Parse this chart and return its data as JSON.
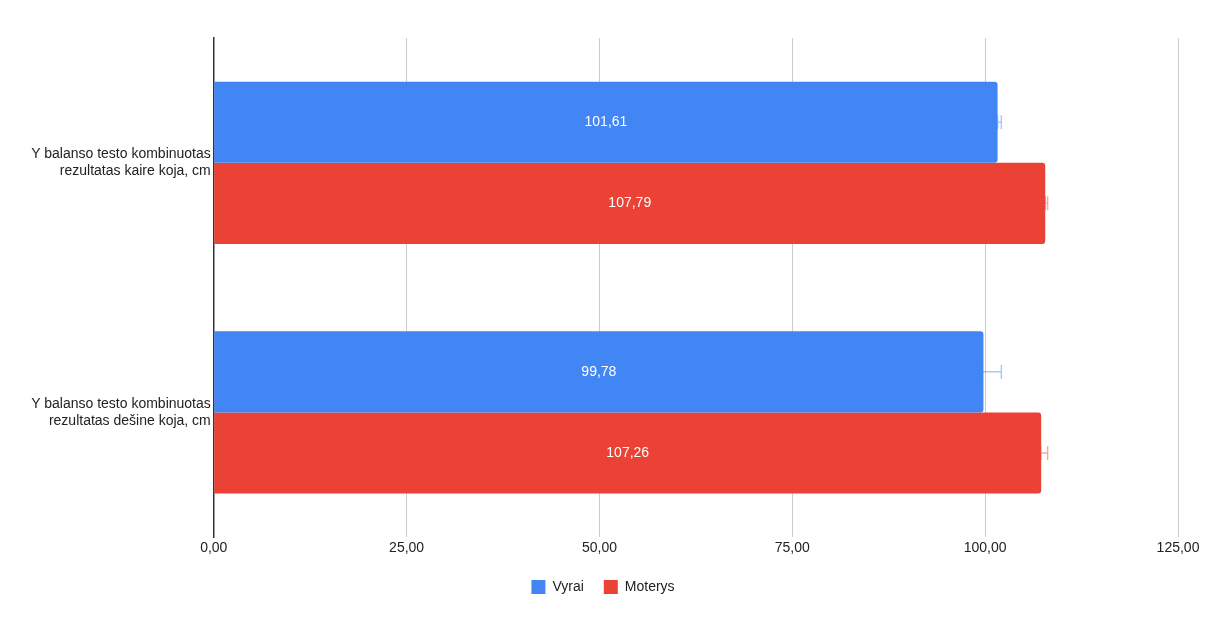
{
  "chart_data": {
    "type": "bar",
    "orientation": "horizontal",
    "categories": [
      "Y balanso testo kombinuotas rezultatas kaire koja, cm",
      "Y balanso testo kombinuotas rezultatas dešine koja, cm"
    ],
    "series": [
      {
        "name": "Vyrai",
        "color": "#4285f4",
        "values": [
          101.61,
          99.78
        ],
        "value_labels": [
          "101,61",
          "99,78"
        ],
        "errors": [
          [
            101.61,
            102.1
          ],
          [
            99.5,
            102.1
          ]
        ]
      },
      {
        "name": "Moterys",
        "color": "#ea4335",
        "values": [
          107.79,
          107.26
        ],
        "value_labels": [
          "107,79",
          "107,26"
        ],
        "errors": [
          [
            107.79,
            108.1
          ],
          [
            107.2,
            108.1
          ]
        ]
      }
    ],
    "xlim": [
      0,
      125
    ],
    "xticks": [
      {
        "value": 0,
        "label": "0,00"
      },
      {
        "value": 25,
        "label": "25,00"
      },
      {
        "value": 50,
        "label": "50,00"
      },
      {
        "value": 75,
        "label": "75,00"
      },
      {
        "value": 100,
        "label": "100,00"
      },
      {
        "value": 125,
        "label": "125,00"
      }
    ],
    "grid": "x",
    "legend": "bottom"
  }
}
